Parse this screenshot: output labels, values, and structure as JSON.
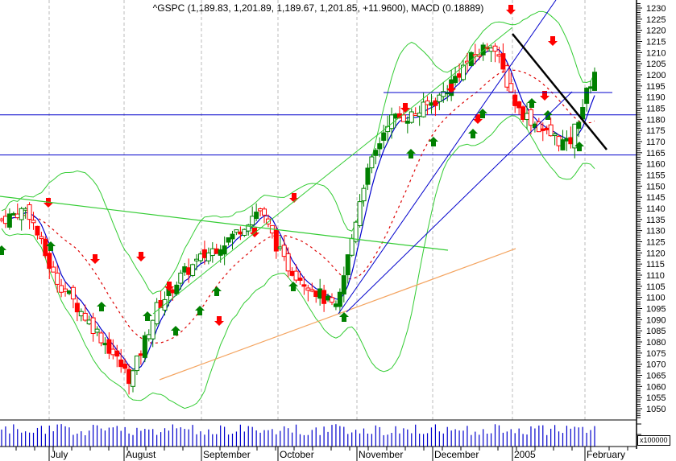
{
  "chart_title": "^GSPC (1,189.83, 1,201.89, 1,189.67, 1,201.85, +11.9600), MACD (0.18889)",
  "volume_unit_label": "x100000",
  "colors": {
    "up_candle": "#008000",
    "down_candle": "#ff0000",
    "ma_fast": "#0000cc",
    "ma_slow_dotted": "#dd0000",
    "bollinger": "#33cc33",
    "trendline_green": "#33cc33",
    "trendline_blue": "#0000cc",
    "trendline_orange": "#f4a460",
    "trendline_black": "#000000",
    "support_lines": "#0000cc",
    "volume_bars": "#0000cc",
    "grid_vertical": "#bbbbbb"
  },
  "chart_data": {
    "type": "candlestick",
    "title": "^GSPC (1,189.83, 1,201.89, 1,189.67, 1,201.85, +11.9600), MACD (0.18889)",
    "last_bar": {
      "open": 1189.83,
      "high": 1201.89,
      "low": 1189.67,
      "close": 1201.85,
      "change": 11.96
    },
    "macd": 0.18889,
    "xlabel": "",
    "ylabel": "",
    "x_tick_labels": [
      "July",
      "August",
      "September",
      "October",
      "November",
      "December",
      "2005",
      "February"
    ],
    "y_tick_labels": [
      1230,
      1225,
      1220,
      1215,
      1210,
      1205,
      1200,
      1195,
      1190,
      1185,
      1180,
      1175,
      1170,
      1165,
      1160,
      1155,
      1150,
      1145,
      1140,
      1135,
      1130,
      1125,
      1120,
      1115,
      1110,
      1105,
      1100,
      1095,
      1090,
      1085,
      1080,
      1075,
      1070,
      1065,
      1060,
      1055,
      1050
    ],
    "ylim": [
      1045,
      1232
    ],
    "volume_axis_label": "x100000",
    "horizontal_lines": [
      1182,
      1164
    ],
    "grid": "vertical dashed at month boundaries",
    "approx_close_series": {
      "x_months": [
        "Jun-end",
        "Jul",
        "Jul",
        "Jul",
        "Aug",
        "Aug",
        "Aug",
        "Sep",
        "Sep",
        "Sep",
        "Oct",
        "Oct",
        "Oct",
        "Oct-end",
        "Nov",
        "Nov",
        "Nov",
        "Dec",
        "Dec",
        "Dec",
        "Jan",
        "Jan",
        "Jan",
        "Feb"
      ],
      "close": [
        1135,
        1140,
        1110,
        1095,
        1080,
        1063,
        1095,
        1110,
        1120,
        1128,
        1140,
        1115,
        1105,
        1094,
        1150,
        1180,
        1182,
        1190,
        1205,
        1215,
        1185,
        1175,
        1168,
        1202
      ]
    },
    "overlays": [
      "Bollinger bands (green)",
      "Fast moving average (blue)",
      "Slow moving average (red dotted)",
      "Trendlines (green, blue, orange, black)",
      "Buy/sell arrows (green up, red down)"
    ],
    "volume_series_note": "blue vertical bars in lower panel"
  }
}
